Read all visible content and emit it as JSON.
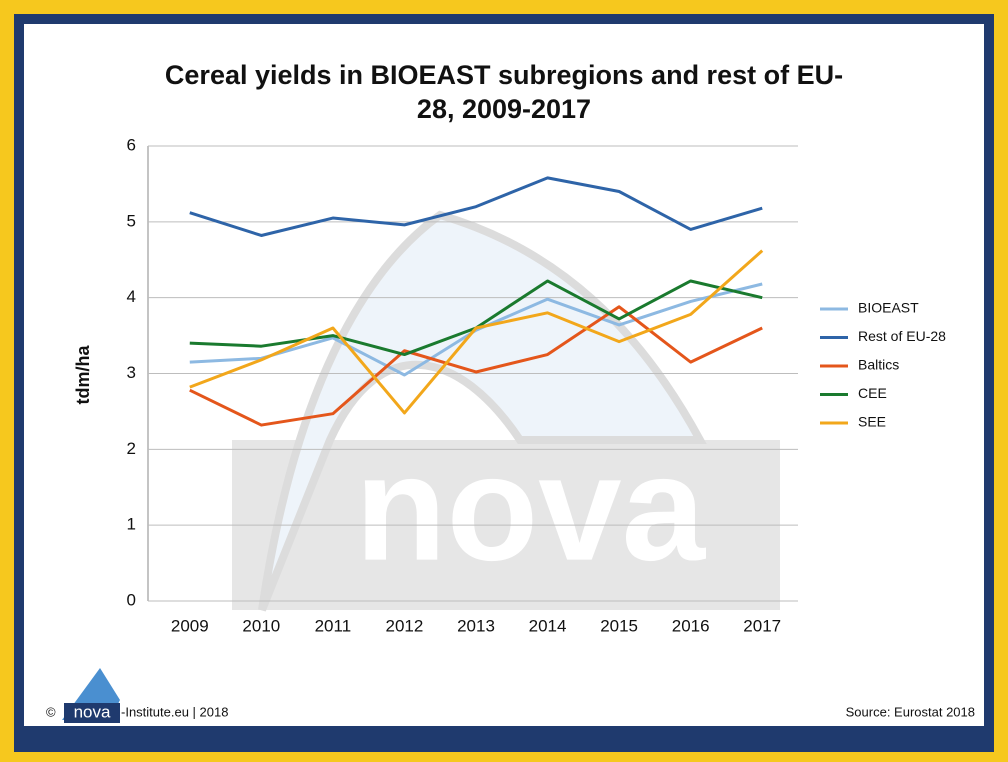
{
  "chart_data": {
    "type": "line",
    "title": "Cereal yields in BIOEAST subregions and rest of EU-28, 2009-2017",
    "y_label": "tdm/ha",
    "categories": [
      "2009",
      "2010",
      "2011",
      "2012",
      "2013",
      "2014",
      "2015",
      "2016",
      "2017"
    ],
    "series": [
      {
        "name": "BIOEAST",
        "color": "#8db9e2",
        "values": [
          3.15,
          3.2,
          3.47,
          2.98,
          3.57,
          3.98,
          3.64,
          3.95,
          4.18
        ]
      },
      {
        "name": "Rest of EU-28",
        "color": "#2e64a8",
        "values": [
          5.12,
          4.82,
          5.05,
          4.96,
          5.2,
          5.58,
          5.4,
          4.9,
          5.18
        ]
      },
      {
        "name": "Baltics",
        "color": "#e4561b",
        "values": [
          2.78,
          2.32,
          2.47,
          3.3,
          3.02,
          3.25,
          3.88,
          3.15,
          3.6
        ]
      },
      {
        "name": "CEE",
        "color": "#1a7a2e",
        "values": [
          3.4,
          3.36,
          3.5,
          3.25,
          3.6,
          4.22,
          3.72,
          4.22,
          4.0
        ]
      },
      {
        "name": "SEE",
        "color": "#f2a71b",
        "values": [
          2.82,
          3.18,
          3.6,
          2.48,
          3.6,
          3.8,
          3.42,
          3.78,
          4.62
        ]
      }
    ],
    "ylim": [
      0,
      6
    ],
    "yticks": [
      0,
      1,
      2,
      3,
      4,
      5,
      6
    ],
    "grid": true,
    "legend": "right",
    "watermark": "nova",
    "footer": {
      "copyright": "©",
      "logo": "nova",
      "credit": "-Institute.eu | 2018",
      "source": "Source: Eurostat 2018"
    }
  }
}
